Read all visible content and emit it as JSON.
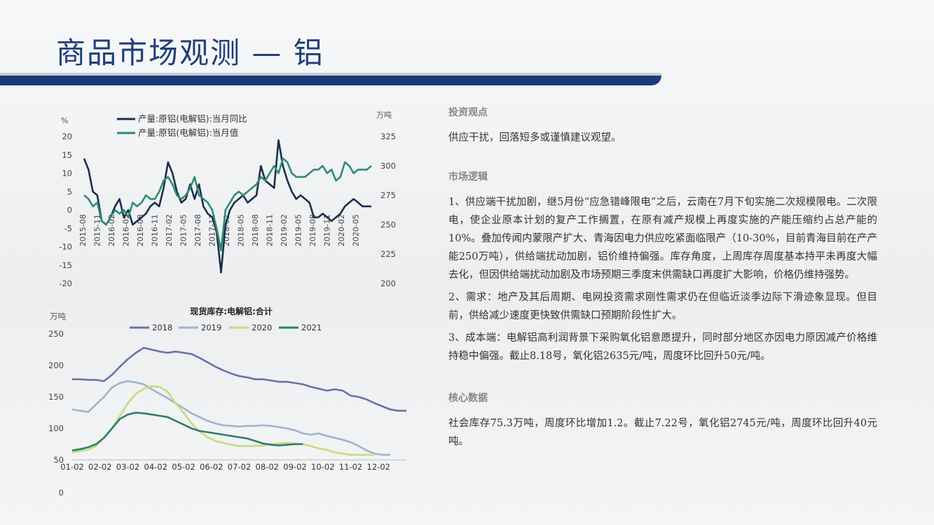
{
  "page": {
    "title": "商品市场观测 — 铝"
  },
  "chart_data": [
    {
      "type": "line",
      "left_unit": "%",
      "right_unit": "万吨",
      "yticks_left": [
        20,
        15,
        10,
        5,
        0,
        -5,
        -10,
        -15,
        -20
      ],
      "yticks_right": [
        325,
        300,
        275,
        250,
        225,
        200
      ],
      "ylim_left": [
        -20,
        20
      ],
      "ylim_right": [
        200,
        325
      ],
      "x_tick_labels": [
        "2015-08",
        "2015-11",
        "2016-02",
        "2016-05",
        "2016-08",
        "2016-11",
        "2017-02",
        "2017-05",
        "2017-08",
        "2017-11",
        "2018-02",
        "2018-05",
        "2018-08",
        "2018-11",
        "2019-02",
        "2019-05",
        "2019-08",
        "2019-11",
        "2020-02",
        "2020-05"
      ],
      "legend_position": "top",
      "series": [
        {
          "name": "产量:原铝(电解铝):当月同比",
          "axis": "left",
          "color": "#1b2f4e",
          "values": [
            14,
            11,
            5,
            4,
            -3,
            -4,
            -2,
            1,
            3,
            -2,
            0,
            -4,
            -3,
            -2,
            -1,
            1,
            2,
            1,
            6,
            13,
            10,
            5,
            2,
            3,
            7,
            3,
            7,
            1,
            -1,
            -2,
            -6,
            -17,
            -4,
            0,
            2,
            3,
            4,
            2,
            3,
            4,
            12,
            8,
            7,
            6,
            19,
            12,
            8,
            5,
            3,
            4,
            3,
            2,
            -2,
            -2,
            -1,
            -2,
            -3,
            -2,
            -1,
            1,
            2,
            3,
            2,
            1,
            1,
            1
          ]
        },
        {
          "name": "产量:原铝(电解铝):当月值",
          "axis": "left",
          "color": "#2e8b74",
          "values": [
            4,
            3,
            1,
            2,
            -3,
            -4,
            -2,
            0,
            -1,
            0,
            -2,
            2,
            1,
            2,
            4,
            3,
            3,
            5,
            8,
            9,
            7,
            4,
            3,
            4,
            6,
            9,
            4,
            3,
            2,
            0,
            -5,
            -11,
            0,
            2,
            4,
            5,
            4,
            5,
            6,
            7,
            9,
            8,
            10,
            12,
            10,
            14,
            13,
            10,
            9,
            9,
            9,
            10,
            11,
            11,
            12,
            10,
            11,
            8,
            9,
            13,
            12,
            10,
            11,
            11,
            11,
            12
          ]
        }
      ]
    },
    {
      "type": "line",
      "title": "现货库存:电解铝:合计",
      "y_unit": "万吨",
      "yticks": [
        250,
        200,
        150,
        100,
        50,
        0
      ],
      "ylim": [
        50,
        250
      ],
      "x_tick_labels": [
        "01-02",
        "02-02",
        "03-02",
        "04-02",
        "05-02",
        "06-02",
        "07-02",
        "08-02",
        "09-02",
        "10-02",
        "11-02",
        "12-02"
      ],
      "legend_position": "top",
      "series": [
        {
          "name": "2018",
          "color": "#6e70a8",
          "values": [
            178,
            178,
            177,
            177,
            175,
            185,
            198,
            210,
            220,
            228,
            225,
            222,
            220,
            222,
            220,
            218,
            212,
            205,
            198,
            192,
            187,
            183,
            181,
            178,
            178,
            176,
            174,
            174,
            172,
            170,
            166,
            163,
            160,
            162,
            160,
            152,
            150,
            146,
            140,
            135,
            130,
            128,
            128
          ]
        },
        {
          "name": "2019",
          "color": "#9fb4cd",
          "values": [
            130,
            128,
            126,
            138,
            150,
            165,
            172,
            175,
            173,
            170,
            162,
            155,
            148,
            140,
            132,
            124,
            118,
            112,
            108,
            105,
            104,
            103,
            104,
            104,
            105,
            104,
            102,
            100,
            97,
            92,
            90,
            92,
            88,
            85,
            82,
            78,
            72,
            65,
            60,
            58,
            58
          ]
        },
        {
          "name": "2020",
          "color": "#c9db7e",
          "values": [
            62,
            64,
            66,
            72,
            85,
            100,
            120,
            140,
            155,
            163,
            167,
            166,
            158,
            140,
            125,
            108,
            95,
            86,
            80,
            77,
            74,
            72,
            72,
            72,
            73,
            75,
            76,
            77,
            76,
            75,
            72,
            68,
            66,
            62,
            60,
            58,
            58,
            58,
            58
          ]
        },
        {
          "name": "2021",
          "color": "#2c7f6a",
          "values": [
            65,
            67,
            70,
            75,
            85,
            100,
            115,
            122,
            125,
            124,
            122,
            120,
            118,
            112,
            106,
            100,
            96,
            94,
            92,
            90,
            88,
            86,
            84,
            80,
            76,
            74,
            73,
            74,
            75,
            75
          ]
        }
      ]
    }
  ],
  "sections": [
    {
      "heading": "投资观点",
      "paragraphs": [
        "供应干扰，回落短多或谨慎建议观望。"
      ]
    },
    {
      "heading": "市场逻辑",
      "paragraphs": [
        "1、供应端干扰加剧，继5月份“应急错峰限电”之后，云南在7月下旬实施二次规模限电。二次限电，使企业原本计划的复产工作搁置，在原有减产规模上再度实施的产能压缩约占总产能的10%。叠加传闻内蒙限产扩大、青海因电力供应吃紧面临限产（10-30%，目前青海目前在产产能250万吨），供给端扰动加剧，铝价维持偏强。库存角度，上周库存周度基本持平未再度大幅去化，但因供给端扰动加剧及市场预期三季度末供需缺口再度扩大影响，价格仍维持强势。",
        "2、需求：地产及其后周期、电网投资需求刚性需求仍在但临近淡季边际下滑迹象显现。但目前，供给减少速度更快致供需缺口预期阶段性扩大。",
        "3、成本端：电解铝高利润背景下采购氧化铝意愿提升，同时部分地区亦因电力原因减产价格维持稳中偏强。截止8.18号，氧化铝2635元/吨，周度环比回升50元/吨。"
      ]
    },
    {
      "heading": "核心数据",
      "paragraphs": [
        "社会库存75.3万吨，周度环比增加1.2。截止7.22号，氧化铝2745元/吨，周度环比回升40元吨。"
      ]
    }
  ]
}
